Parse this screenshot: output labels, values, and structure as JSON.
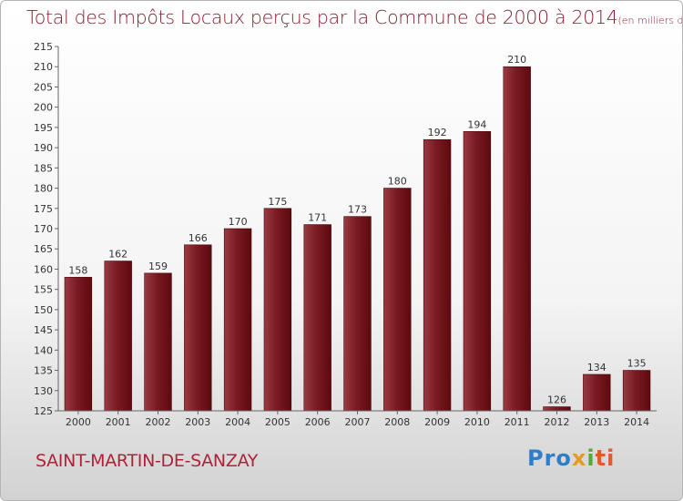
{
  "chart_data": {
    "type": "bar",
    "title": "Total des Impôts Locaux perçus par la Commune de 2000 à 2014",
    "title_unit": "(en milliers d'€)",
    "categories": [
      "2000",
      "2001",
      "2002",
      "2003",
      "2004",
      "2005",
      "2006",
      "2007",
      "2008",
      "2009",
      "2010",
      "2011",
      "2012",
      "2013",
      "2014"
    ],
    "values": [
      158,
      162,
      159,
      166,
      170,
      175,
      171,
      173,
      180,
      192,
      194,
      210,
      126,
      134,
      135
    ],
    "ylim": [
      125,
      215
    ],
    "yticks": [
      125,
      130,
      135,
      140,
      145,
      150,
      155,
      160,
      165,
      170,
      175,
      180,
      185,
      190,
      195,
      200,
      205,
      210,
      215
    ],
    "grid": false,
    "bar_color": "#7a1a22",
    "bar_color_light": "#9a3a42",
    "bar_color_dark": "#5e0a0f"
  },
  "commune": "SAINT-MARTIN-DE-SANZAY",
  "logo": {
    "part1": "Pro",
    "part2": "x",
    "part3": "i",
    "part4": "ti"
  }
}
